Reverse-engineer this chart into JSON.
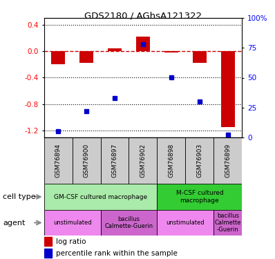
{
  "title": "GDS2180 / AGhsA121322",
  "samples": [
    "GSM76894",
    "GSM76900",
    "GSM76897",
    "GSM76902",
    "GSM76898",
    "GSM76903",
    "GSM76899"
  ],
  "log_ratio": [
    -0.2,
    -0.18,
    0.04,
    0.22,
    -0.02,
    -0.18,
    -1.15
  ],
  "percentile_rank": [
    5,
    22,
    33,
    78,
    50,
    30,
    2
  ],
  "ylim_left": [
    -1.3,
    0.5
  ],
  "ylim_right": [
    0,
    100
  ],
  "yticks_left": [
    0.4,
    0.0,
    -0.4,
    -0.8,
    -1.2
  ],
  "yticks_right": [
    100,
    75,
    50,
    25,
    0
  ],
  "bar_color": "#cc0000",
  "dot_color": "#0000cc",
  "dashed_color": "#cc0000",
  "cell_type_row": [
    {
      "label": "GM-CSF cultured macrophage",
      "start": 0,
      "end": 4,
      "color": "#aaeaaa"
    },
    {
      "label": "M-CSF cultured\nmacrophage",
      "start": 4,
      "end": 7,
      "color": "#33cc33"
    }
  ],
  "agent_row": [
    {
      "label": "unstimulated",
      "start": 0,
      "end": 2,
      "color": "#ee88ee"
    },
    {
      "label": "bacillus\nCalmette-Guerin",
      "start": 2,
      "end": 4,
      "color": "#cc66cc"
    },
    {
      "label": "unstimulated",
      "start": 4,
      "end": 6,
      "color": "#ee88ee"
    },
    {
      "label": "bacillus\nCalmette\n-Guerin",
      "start": 6,
      "end": 7,
      "color": "#cc66cc"
    }
  ],
  "legend_red_label": "log ratio",
  "legend_blue_label": "percentile rank within the sample",
  "cell_type_label": "cell type",
  "agent_label": "agent",
  "sample_bg_color": "#cccccc",
  "bar_width": 0.5
}
